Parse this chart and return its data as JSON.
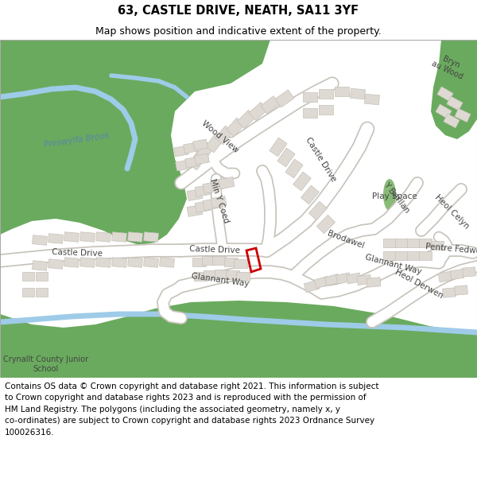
{
  "title_line1": "63, CASTLE DRIVE, NEATH, SA11 3YF",
  "title_line2": "Map shows position and indicative extent of the property.",
  "footer_text": "Contains OS data © Crown copyright and database right 2021. This information is subject\nto Crown copyright and database rights 2023 and is reproduced with the permission of\nHM Land Registry. The polygons (including the associated geometry, namely x, y\nco-ordinates) are subject to Crown copyright and database rights 2023 Ordnance Survey\n100026316.",
  "title_fontsize": 10.5,
  "subtitle_fontsize": 9.0,
  "footer_fontsize": 7.5,
  "title_color": "#000000",
  "footer_color": "#000000",
  "background_color": "#ffffff",
  "fig_width": 6.0,
  "fig_height": 6.25,
  "dpi": 100,
  "map_bg_color": "#f2efea",
  "green_color": "#6aaa5e",
  "green_small_color": "#88bb77",
  "water_color": "#9ecbe8",
  "building_color": "#dedad3",
  "building_edge": "#c5c1b9",
  "plot_color": "#cc0000",
  "road_color": "#ffffff",
  "road_edge_color": "#c8c4bc",
  "label_color": "#444444",
  "water_label_color": "#5588aa"
}
